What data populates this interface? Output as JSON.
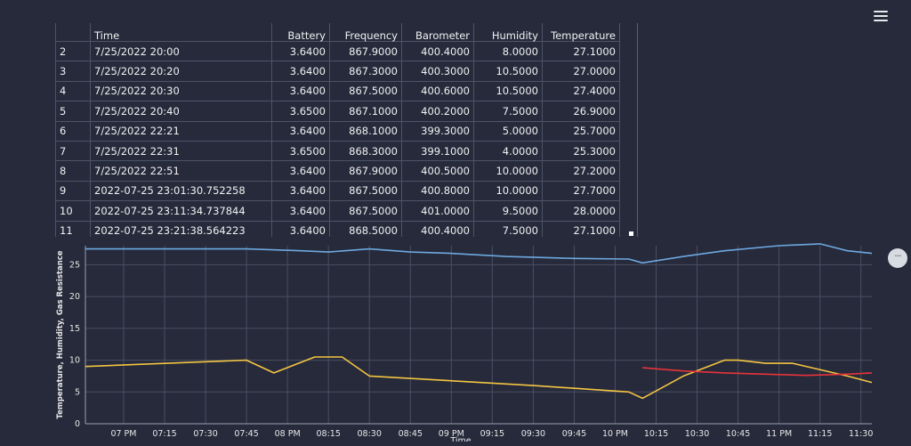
{
  "table": {
    "columns": [
      "",
      "Time",
      "Battery",
      "Frequency",
      "Barometer",
      "Humidity",
      "Temperature"
    ],
    "rows": [
      [
        "2",
        "7/25/2022 20:00",
        "3.6400",
        "867.9000",
        "400.4000",
        "8.0000",
        "27.1000"
      ],
      [
        "3",
        "7/25/2022 20:20",
        "3.6400",
        "867.3000",
        "400.3000",
        "10.5000",
        "27.0000"
      ],
      [
        "4",
        "7/25/2022 20:30",
        "3.6400",
        "867.5000",
        "400.6000",
        "10.5000",
        "27.4000"
      ],
      [
        "5",
        "7/25/2022 20:40",
        "3.6500",
        "867.1000",
        "400.2000",
        "7.5000",
        "26.9000"
      ],
      [
        "6",
        "7/25/2022 22:21",
        "3.6400",
        "868.1000",
        "399.3000",
        "5.0000",
        "25.7000"
      ],
      [
        "7",
        "7/25/2022 22:31",
        "3.6500",
        "868.3000",
        "399.1000",
        "4.0000",
        "25.3000"
      ],
      [
        "8",
        "7/25/2022 22:51",
        "3.6400",
        "867.9000",
        "400.5000",
        "10.0000",
        "27.2000"
      ],
      [
        "9",
        "2022-07-25 23:01:30.752258",
        "3.6400",
        "867.5000",
        "400.8000",
        "10.0000",
        "27.7000"
      ],
      [
        "10",
        "2022-07-25 23:11:34.737844",
        "3.6400",
        "867.5000",
        "401.0000",
        "9.5000",
        "28.0000"
      ],
      [
        "11",
        "2022-07-25 23:21:38.564223",
        "3.6400",
        "868.5000",
        "400.4000",
        "7.5000",
        "27.1000"
      ]
    ]
  },
  "menu_icon": "hamburger-icon",
  "more_icon": "ellipsis-icon",
  "more_label": "···",
  "chart_data": {
    "type": "line",
    "xlabel": "Time",
    "ylabel": "Temperature, Humidity, Gas Resistance",
    "xticks": [
      "07 PM",
      "07:15",
      "07:30",
      "07:45",
      "08 PM",
      "08:15",
      "08:30",
      "08:45",
      "09 PM",
      "09:15",
      "09:30",
      "09:45",
      "10 PM",
      "10:15",
      "10:30",
      "10:45",
      "11 PM",
      "11:15",
      "11:30"
    ],
    "x_range_minutes": [
      1126,
      1414
    ],
    "ylim": [
      0,
      28
    ],
    "yticks": [
      0,
      5,
      10,
      15,
      20,
      25
    ],
    "grid": true,
    "series": [
      {
        "color": "#6ea8e0",
        "x": [
          1126,
          1185,
          1205,
          1215,
          1230,
          1245,
          1260,
          1280,
          1305,
          1325,
          1330,
          1345,
          1360,
          1380,
          1395,
          1405,
          1414
        ],
        "y": [
          27.5,
          27.5,
          27.2,
          27.0,
          27.5,
          27.0,
          26.8,
          26.3,
          26.0,
          25.9,
          25.3,
          26.3,
          27.2,
          28.0,
          28.3,
          27.2,
          26.8
        ]
      },
      {
        "color": "#f5c542",
        "x": [
          1126,
          1185,
          1195,
          1210,
          1220,
          1230,
          1290,
          1325,
          1330,
          1345,
          1360,
          1365,
          1375,
          1385,
          1405,
          1414
        ],
        "y": [
          9.0,
          10.0,
          8.0,
          10.5,
          10.5,
          7.5,
          6.0,
          5.0,
          4.0,
          7.5,
          10.0,
          10.0,
          9.5,
          9.5,
          7.5,
          6.5
        ]
      },
      {
        "color": "#e8333a",
        "x": [
          1330,
          1345,
          1360,
          1375,
          1390,
          1405,
          1414
        ],
        "y": [
          8.8,
          8.3,
          8.0,
          7.8,
          7.6,
          7.8,
          8.0
        ]
      }
    ]
  }
}
